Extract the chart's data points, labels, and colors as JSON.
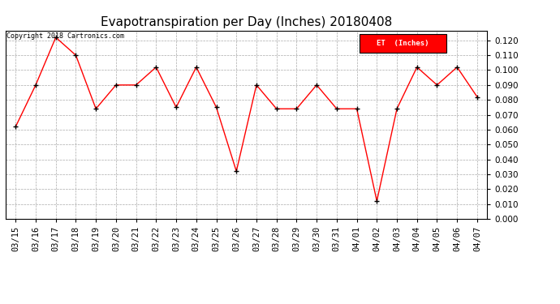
{
  "title": "Evapotranspiration per Day (Inches) 20180408",
  "copyright": "Copyright 2018 Cartronics.com",
  "legend_label": "ET  (Inches)",
  "legend_bg": "#ff0000",
  "legend_text_color": "#ffffff",
  "dates": [
    "03/15",
    "03/16",
    "03/17",
    "03/18",
    "03/19",
    "03/20",
    "03/21",
    "03/22",
    "03/23",
    "03/24",
    "03/25",
    "03/26",
    "03/27",
    "03/28",
    "03/29",
    "03/30",
    "03/31",
    "04/01",
    "04/02",
    "04/03",
    "04/04",
    "04/05",
    "04/06",
    "04/07"
  ],
  "values": [
    0.062,
    0.09,
    0.122,
    0.11,
    0.074,
    0.09,
    0.09,
    0.102,
    0.075,
    0.102,
    0.075,
    0.032,
    0.09,
    0.074,
    0.074,
    0.09,
    0.074,
    0.074,
    0.012,
    0.074,
    0.102,
    0.09,
    0.102,
    0.082
  ],
  "ylim": [
    0.0,
    0.1267
  ],
  "yticks": [
    0.0,
    0.01,
    0.02,
    0.03,
    0.04,
    0.05,
    0.06,
    0.07,
    0.08,
    0.09,
    0.1,
    0.11,
    0.12
  ],
  "line_color": "#ff0000",
  "marker_color": "#000000",
  "grid_color": "#aaaaaa",
  "bg_color": "#ffffff",
  "title_fontsize": 11,
  "copyright_fontsize": 6,
  "tick_fontsize": 7.5
}
